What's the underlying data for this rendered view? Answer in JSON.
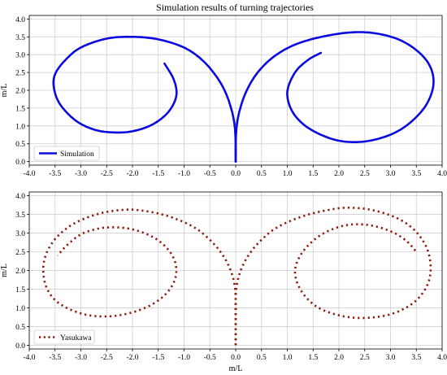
{
  "figure": {
    "title": "Simulation results of turning trajectories"
  },
  "colors": {
    "simulation": "#0a0adf",
    "yasukawa": "#8b1a0a",
    "grid": "#cfcfcf"
  },
  "chart_data": [
    {
      "type": "line",
      "title": "Simulation results of turning trajectories",
      "xlabel": "",
      "ylabel": "m/L",
      "xlim": [
        -4.0,
        4.0
      ],
      "ylim": [
        -0.1,
        4.1
      ],
      "xticks": [
        "-4.0",
        "-3.5",
        "-3.0",
        "-2.5",
        "-2.0",
        "-1.5",
        "-1.0",
        "-0.5",
        "0.0",
        "0.5",
        "1.0",
        "1.5",
        "2.0",
        "2.5",
        "3.0",
        "3.5",
        "4.0"
      ],
      "yticks": [
        "0.0",
        "0.5",
        "1.0",
        "1.5",
        "2.0",
        "2.5",
        "3.0",
        "3.5",
        "4.0"
      ],
      "grid": true,
      "legend": "bottom-left",
      "series": [
        {
          "name": "Simulation",
          "style": "solid",
          "segments": [
            [
              [
                0.0,
                0.0
              ],
              [
                0.0,
                0.5
              ],
              [
                -0.02,
                1.0
              ],
              [
                -0.08,
                1.45
              ],
              [
                -0.2,
                1.95
              ],
              [
                -0.38,
                2.4
              ],
              [
                -0.65,
                2.85
              ],
              [
                -1.0,
                3.2
              ],
              [
                -1.5,
                3.43
              ],
              [
                -2.0,
                3.5
              ],
              [
                -2.5,
                3.45
              ],
              [
                -3.0,
                3.2
              ],
              [
                -3.3,
                2.85
              ],
              [
                -3.5,
                2.45
              ],
              [
                -3.52,
                2.05
              ],
              [
                -3.4,
                1.6
              ],
              [
                -3.1,
                1.15
              ],
              [
                -2.75,
                0.9
              ],
              [
                -2.4,
                0.82
              ],
              [
                -2.0,
                0.85
              ],
              [
                -1.6,
                1.05
              ],
              [
                -1.3,
                1.4
              ],
              [
                -1.15,
                1.85
              ],
              [
                -1.2,
                2.3
              ],
              [
                -1.38,
                2.75
              ]
            ],
            [
              [
                0.0,
                0.0
              ],
              [
                0.0,
                0.5
              ],
              [
                0.02,
                1.0
              ],
              [
                0.08,
                1.45
              ],
              [
                0.2,
                1.95
              ],
              [
                0.4,
                2.45
              ],
              [
                0.7,
                2.9
              ],
              [
                1.1,
                3.25
              ],
              [
                1.6,
                3.48
              ],
              [
                2.2,
                3.62
              ],
              [
                2.7,
                3.6
              ],
              [
                3.2,
                3.4
              ],
              [
                3.6,
                3.0
              ],
              [
                3.8,
                2.55
              ],
              [
                3.82,
                2.05
              ],
              [
                3.65,
                1.5
              ],
              [
                3.3,
                1.0
              ],
              [
                2.9,
                0.7
              ],
              [
                2.4,
                0.55
              ],
              [
                1.9,
                0.62
              ],
              [
                1.4,
                0.95
              ],
              [
                1.1,
                1.4
              ],
              [
                1.0,
                1.95
              ],
              [
                1.15,
                2.5
              ],
              [
                1.4,
                2.85
              ],
              [
                1.65,
                3.05
              ]
            ]
          ]
        }
      ]
    },
    {
      "type": "scatter",
      "title": "",
      "xlabel": "m/L",
      "ylabel": "m/L",
      "xlim": [
        -4.0,
        4.0
      ],
      "ylim": [
        -0.1,
        4.1
      ],
      "xticks": [
        "-4.0",
        "-3.5",
        "-3.0",
        "-2.5",
        "-2.0",
        "-1.5",
        "-1.0",
        "-0.5",
        "0.0",
        "0.5",
        "1.0",
        "1.5",
        "2.0",
        "2.5",
        "3.0",
        "3.5",
        "4.0"
      ],
      "yticks": [
        "0.0",
        "0.5",
        "1.0",
        "1.5",
        "2.0",
        "2.5",
        "3.0",
        "3.5",
        "4.0"
      ],
      "grid": true,
      "legend": "bottom-left",
      "series": [
        {
          "name": "Yasukawa",
          "style": "dotted",
          "segments": [
            [
              [
                0.0,
                0.0
              ],
              [
                0.0,
                0.6
              ],
              [
                0.0,
                1.3
              ],
              [
                -0.05,
                1.8
              ],
              [
                -0.2,
                2.3
              ],
              [
                -0.45,
                2.75
              ],
              [
                -0.8,
                3.15
              ],
              [
                -1.3,
                3.45
              ],
              [
                -1.8,
                3.6
              ],
              [
                -2.2,
                3.62
              ],
              [
                -2.7,
                3.5
              ],
              [
                -3.2,
                3.2
              ],
              [
                -3.55,
                2.75
              ],
              [
                -3.72,
                2.2
              ],
              [
                -3.68,
                1.6
              ],
              [
                -3.45,
                1.15
              ],
              [
                -3.0,
                0.85
              ],
              [
                -2.5,
                0.77
              ],
              [
                -2.0,
                0.88
              ],
              [
                -1.55,
                1.15
              ],
              [
                -1.25,
                1.55
              ],
              [
                -1.15,
                2.0
              ],
              [
                -1.25,
                2.45
              ],
              [
                -1.55,
                2.85
              ],
              [
                -2.0,
                3.1
              ],
              [
                -2.5,
                3.15
              ],
              [
                -2.95,
                3.0
              ],
              [
                -3.25,
                2.7
              ],
              [
                -3.45,
                2.4
              ]
            ],
            [
              [
                0.0,
                0.0
              ],
              [
                0.0,
                0.6
              ],
              [
                0.0,
                1.3
              ],
              [
                0.05,
                1.8
              ],
              [
                0.2,
                2.3
              ],
              [
                0.45,
                2.75
              ],
              [
                0.8,
                3.15
              ],
              [
                1.3,
                3.45
              ],
              [
                1.8,
                3.62
              ],
              [
                2.2,
                3.68
              ],
              [
                2.7,
                3.6
              ],
              [
                3.2,
                3.35
              ],
              [
                3.55,
                2.95
              ],
              [
                3.75,
                2.4
              ],
              [
                3.75,
                1.75
              ],
              [
                3.5,
                1.2
              ],
              [
                3.05,
                0.85
              ],
              [
                2.5,
                0.73
              ],
              [
                2.0,
                0.8
              ],
              [
                1.55,
                1.05
              ],
              [
                1.25,
                1.5
              ],
              [
                1.15,
                2.0
              ],
              [
                1.3,
                2.5
              ],
              [
                1.65,
                2.95
              ],
              [
                2.1,
                3.2
              ],
              [
                2.55,
                3.22
              ],
              [
                3.0,
                3.05
              ],
              [
                3.3,
                2.8
              ],
              [
                3.5,
                2.5
              ]
            ]
          ]
        }
      ]
    }
  ]
}
